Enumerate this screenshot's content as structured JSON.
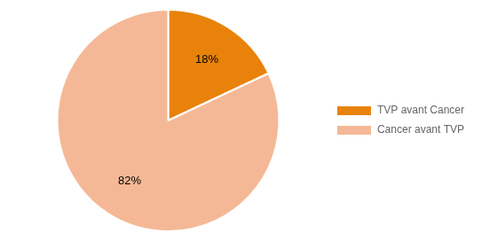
{
  "chart_data": {
    "type": "pie",
    "categories": [
      "TVP avant Cancer",
      "Cancer avant TVP"
    ],
    "values": [
      18,
      82
    ],
    "value_labels": [
      "18%",
      "82%"
    ],
    "colors": [
      "#E8820A",
      "#F5B896"
    ],
    "data_labels": true,
    "legend": "right"
  }
}
